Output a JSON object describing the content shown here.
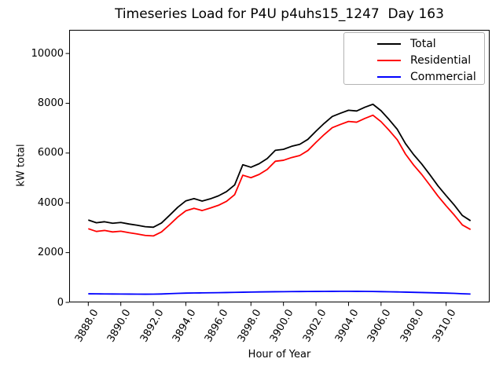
{
  "figure": {
    "title": "Timeseries Load for P4U p4uhs15_1247  Day 163",
    "xlabel": "Hour of Year",
    "ylabel": "kW total"
  },
  "chart_data": {
    "type": "line",
    "title": "Timeseries Load for P4U p4uhs15_1247  Day 163",
    "xlabel": "Hour of Year",
    "ylabel": "kW total",
    "grid": false,
    "legend_position": "upper right",
    "xlim": [
      3886.825,
      3912.675
    ],
    "ylim": [
      0,
      10950
    ],
    "xticks": [
      3888,
      3890,
      3892,
      3894,
      3896,
      3898,
      3900,
      3902,
      3904,
      3906,
      3908,
      3910
    ],
    "xtick_labels": [
      "3888.0",
      "3890.0",
      "3892.0",
      "3894.0",
      "3896.0",
      "3898.0",
      "3900.0",
      "3902.0",
      "3904.0",
      "3906.0",
      "3908.0",
      "3910.0"
    ],
    "yticks": [
      0,
      2000,
      4000,
      6000,
      8000,
      10000
    ],
    "ytick_labels": [
      "0",
      "2000",
      "4000",
      "6000",
      "8000",
      "10000"
    ],
    "x": [
      3888,
      3888.5,
      3889,
      3889.5,
      3890,
      3890.5,
      3891,
      3891.5,
      3892,
      3892.5,
      3893,
      3893.5,
      3894,
      3894.5,
      3895,
      3895.5,
      3896,
      3896.5,
      3897,
      3897.5,
      3898,
      3898.5,
      3899,
      3899.5,
      3900,
      3900.5,
      3901,
      3901.5,
      3902,
      3902.5,
      3903,
      3903.5,
      3904,
      3904.5,
      3905,
      3905.5,
      3906,
      3906.5,
      3907,
      3907.5,
      3908,
      3908.5,
      3909,
      3909.5,
      3910,
      3910.5,
      3911,
      3911.5
    ],
    "series": [
      {
        "name": "Total",
        "color": "#000000",
        "values": [
          3310,
          3200,
          3240,
          3180,
          3210,
          3150,
          3100,
          3040,
          3020,
          3190,
          3500,
          3820,
          4080,
          4170,
          4070,
          4160,
          4280,
          4450,
          4720,
          5530,
          5430,
          5570,
          5780,
          6110,
          6150,
          6270,
          6350,
          6550,
          6880,
          7190,
          7470,
          7600,
          7720,
          7690,
          7840,
          7960,
          7700,
          7340,
          6950,
          6380,
          5940,
          5560,
          5130,
          4680,
          4290,
          3910,
          3490,
          3280
        ]
      },
      {
        "name": "Residential",
        "color": "#ff0000",
        "values": [
          2960,
          2850,
          2890,
          2830,
          2860,
          2800,
          2750,
          2690,
          2670,
          2830,
          3120,
          3430,
          3680,
          3780,
          3690,
          3790,
          3900,
          4060,
          4330,
          5110,
          5010,
          5140,
          5340,
          5670,
          5710,
          5820,
          5900,
          6100,
          6430,
          6740,
          7020,
          7150,
          7270,
          7240,
          7390,
          7520,
          7260,
          6910,
          6530,
          5960,
          5520,
          5140,
          4710,
          4270,
          3880,
          3510,
          3110,
          2930
        ]
      },
      {
        "name": "Commercial",
        "color": "#0000ff",
        "values": [
          345,
          342,
          340,
          338,
          336,
          334,
          332,
          330,
          332,
          338,
          350,
          362,
          372,
          378,
          382,
          386,
          390,
          396,
          402,
          408,
          414,
          420,
          424,
          428,
          430,
          434,
          436,
          438,
          440,
          442,
          444,
          446,
          446,
          444,
          442,
          438,
          432,
          426,
          420,
          412,
          404,
          396,
          388,
          380,
          372,
          362,
          348,
          336
        ]
      }
    ]
  }
}
